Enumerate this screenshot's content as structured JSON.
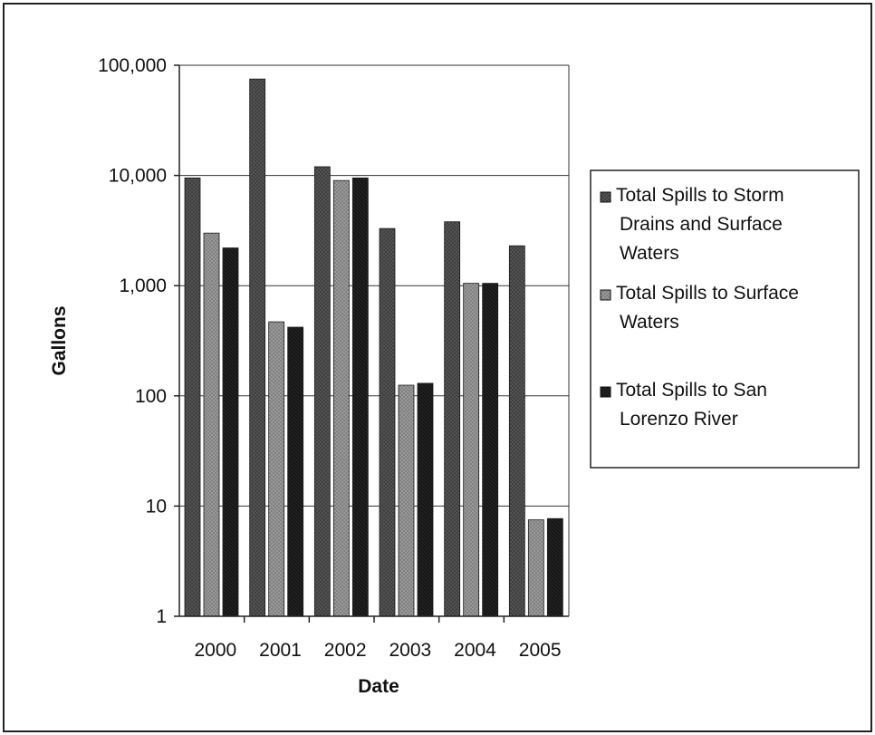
{
  "chart_data": {
    "type": "bar",
    "xlabel": "Date",
    "ylabel": "Gallons",
    "y_scale": "log",
    "ylim": [
      1,
      100000
    ],
    "y_ticks": [
      1,
      10,
      100,
      1000,
      10000,
      100000
    ],
    "y_tick_labels": [
      "1",
      "10",
      "100",
      "1,000",
      "10,000",
      "100,000"
    ],
    "categories": [
      "2000",
      "2001",
      "2002",
      "2003",
      "2004",
      "2005"
    ],
    "series": [
      {
        "name": "Total Spills to Storm Drains and Surface Waters",
        "legend_lines": [
          "Total Spills to Storm",
          "Drains and Surface",
          "Waters"
        ],
        "color": "#555555",
        "values": [
          9500,
          75000,
          12000,
          3300,
          3800,
          2300
        ]
      },
      {
        "name": "Total Spills to  Surface Waters",
        "legend_lines": [
          "Total Spills to  Surface",
          "Waters"
        ],
        "color": "#9a9a9a",
        "values": [
          3000,
          470,
          9000,
          125,
          1050,
          7.5
        ]
      },
      {
        "name": "Total Spills to San Lorenzo River",
        "legend_lines": [
          "Total Spills to San",
          "Lorenzo River"
        ],
        "color": "#111111",
        "values": [
          2200,
          420,
          9500,
          130,
          1050,
          7.7
        ]
      }
    ],
    "grid": "horizontal",
    "legend_position": "right"
  }
}
